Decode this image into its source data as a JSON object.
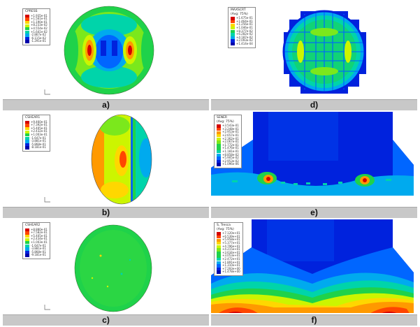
{
  "panels": {
    "a": {
      "caption": "a)",
      "legend_title": "CPRESS",
      "legend_values": [
        "+1.935e-01",
        "+1.561e-01",
        "+1.190e-01",
        "+8.233e-02",
        "+4.554e-02",
        "+1.641e-02",
        "-2.867e-02",
        "-6.115e-02",
        "-1.291e-01"
      ]
    },
    "b": {
      "caption": "b)",
      "legend_title": "CSHEAR1",
      "legend_values": [
        "+9.460e-01",
        "+7.392e-01",
        "+5.405e-01",
        "+2.432e-01",
        "+1.003e-01",
        "-1.647e-01",
        "-3.881e-01",
        "-5.868e-01",
        "-8.181e-01"
      ]
    },
    "c": {
      "caption": "c)",
      "legend_title": "CSHEAR2",
      "legend_values": [
        "+8.880e-01",
        "+7.582e-01",
        "+5.405e-01",
        "+2.434e-01",
        "+1.003e-01",
        "-1.647e-01",
        "-3.881e-01",
        "-5.868e-01",
        "-9.181e-01"
      ]
    },
    "d": {
      "caption": "d)",
      "legend_title": "MAXSCRT",
      "legend_sub": "(Avg: 75%)",
      "legend_values": [
        "+1.675e-01",
        "+1.464e-01",
        "+1.256e-01",
        "+1.046e-01",
        "+8.377e-02",
        "+6.282e-02",
        "+4.187e-02",
        "+2.093e-02",
        "+1.414e-04"
      ]
    },
    "e": {
      "caption": "e)",
      "legend_title": "SENER",
      "legend_sub": "(Avg: 75%)",
      "legend_values": [
        "+3.543e-01",
        "+3.248e-01",
        "+2.953e-01",
        "+2.657e-01",
        "+2.362e-01",
        "+2.067e-01",
        "+1.772e-01",
        "+1.476e-01",
        "+1.181e-01",
        "+8.858e-02",
        "+5.905e-02",
        "+2.953e-02",
        "+1.096e-06"
      ]
    },
    "f": {
      "caption": "f)",
      "legend_title": "S, Tresca",
      "legend_sub": "(Avg: 75%)",
      "legend_values": [
        "+7.120e+01",
        "+6.539e+01",
        "+5.958e+01",
        "+5.377e+01",
        "+4.796e+01",
        "+4.215e+01",
        "+3.634e+01",
        "+3.053e+01",
        "+2.472e+01",
        "+1.891e+01",
        "+1.310e+01",
        "+7.293e+00",
        "+1.478e+00"
      ]
    }
  },
  "colors": {
    "contour_scale": [
      "#d40000",
      "#ff4500",
      "#ff9900",
      "#ffd700",
      "#ccf500",
      "#7be81c",
      "#1fd24a",
      "#00d4aa",
      "#00aaee",
      "#0066ff",
      "#0022dd",
      "#0000aa"
    ]
  }
}
